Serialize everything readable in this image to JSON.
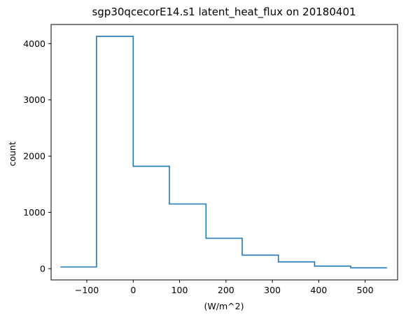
{
  "chart_data": {
    "type": "histogram-step",
    "title": "sgp30qcecorE14.s1 latent_heat_flux on 20180401",
    "xlabel": "(W/m^2)",
    "ylabel": "count",
    "xlim": [
      -177,
      570
    ],
    "ylim": [
      -200,
      4340
    ],
    "xticks": [
      -100,
      0,
      100,
      200,
      300,
      400,
      500
    ],
    "xtick_labels": [
      "−100",
      "0",
      "100",
      "200",
      "300",
      "400",
      "500"
    ],
    "yticks": [
      0,
      1000,
      2000,
      3000,
      4000
    ],
    "ytick_labels": [
      "0",
      "1000",
      "2000",
      "3000",
      "4000"
    ],
    "bin_edges": [
      -157,
      -79,
      0,
      78,
      157,
      235,
      313,
      391,
      469,
      547
    ],
    "counts": [
      30,
      4130,
      1820,
      1150,
      540,
      240,
      120,
      45,
      15
    ],
    "line_color": "#1f77b4",
    "grid": false,
    "legend": "none"
  }
}
